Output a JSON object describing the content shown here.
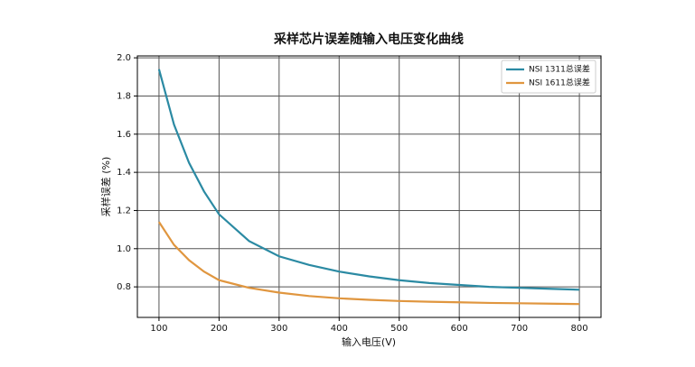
{
  "chart_data": {
    "type": "line",
    "title": "采样芯片误差随输入电压变化曲线",
    "x_label": "输入电压(V)",
    "y_label": "采样误差 (%)",
    "x": [
      100,
      125,
      150,
      175,
      200,
      250,
      300,
      350,
      400,
      450,
      500,
      550,
      600,
      650,
      700,
      750,
      800
    ],
    "series": [
      {
        "name": "NSI 1311总误差",
        "color": "#2b8aa3",
        "values": [
          1.94,
          1.65,
          1.45,
          1.3,
          1.18,
          1.04,
          0.96,
          0.915,
          0.88,
          0.855,
          0.835,
          0.82,
          0.81,
          0.8,
          0.795,
          0.79,
          0.785
        ]
      },
      {
        "name": "NSI 1611总误差",
        "color": "#e0963f",
        "values": [
          1.14,
          1.02,
          0.94,
          0.88,
          0.835,
          0.795,
          0.77,
          0.752,
          0.74,
          0.732,
          0.726,
          0.722,
          0.719,
          0.716,
          0.714,
          0.712,
          0.71
        ]
      }
    ],
    "xlim": [
      64,
      836
    ],
    "xticks": [
      100,
      200,
      300,
      400,
      500,
      600,
      700,
      800
    ],
    "ylim": [
      0.64,
      2.01
    ],
    "yticks": [
      {
        "value": 0.8,
        "label": "0.8"
      },
      {
        "value": 1.0,
        "label": "1.0"
      },
      {
        "value": 1.2,
        "label": "1.2"
      },
      {
        "value": 1.4,
        "label": "1.4"
      },
      {
        "value": 1.6,
        "label": "1.6"
      },
      {
        "value": 1.8,
        "label": "1.8"
      },
      {
        "value": 2.0,
        "label": "2.0"
      }
    ],
    "grid": true,
    "legend": "upper-right"
  }
}
